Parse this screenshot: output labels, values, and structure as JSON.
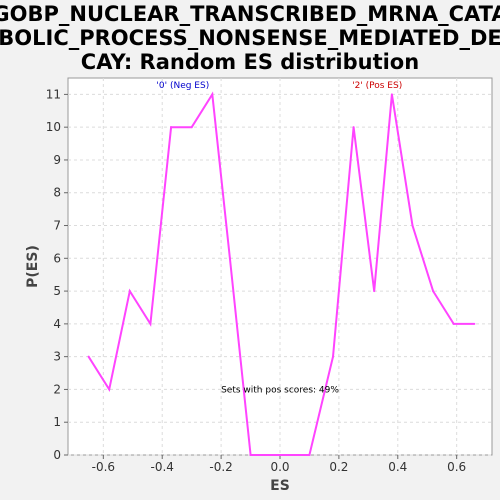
{
  "chart_data": {
    "type": "line",
    "title_lines": [
      "GOBP_NUCLEAR_TRANSCRIBED_MRNA_CATA",
      "BOLIC_PROCESS_NONSENSE_MEDIATED_DE",
      "CAY: Random ES distribution"
    ],
    "xlabel": "ES",
    "ylabel": "P(ES)",
    "xlim": [
      -0.72,
      0.72
    ],
    "ylim": [
      0,
      11.5
    ],
    "xticks": [
      -0.6,
      -0.4,
      -0.2,
      0.0,
      0.2,
      0.4,
      0.6
    ],
    "xtick_labels": [
      "-0.6",
      "-0.4",
      "-0.2",
      "0.0",
      "0.2",
      "0.4",
      "0.6"
    ],
    "yticks": [
      0,
      1,
      2,
      3,
      4,
      5,
      6,
      7,
      8,
      9,
      10,
      11
    ],
    "ytick_labels": [
      "0",
      "1",
      "2",
      "3",
      "4",
      "5",
      "6",
      "7",
      "8",
      "9",
      "10",
      "11"
    ],
    "grid": true,
    "line_color": "#ff44ff",
    "series": [
      {
        "x": [
          -0.65,
          -0.58,
          -0.51,
          -0.44,
          -0.37,
          -0.3,
          -0.23,
          -0.17,
          -0.1,
          -0.03,
          0.03,
          0.1,
          0.18,
          0.25,
          0.32,
          0.38,
          0.45,
          0.52,
          0.59,
          0.66
        ],
        "y": [
          3,
          2,
          5,
          4,
          10,
          10,
          11,
          6,
          0,
          0,
          0,
          0,
          3,
          10,
          5,
          11,
          7,
          5,
          4,
          4
        ]
      }
    ],
    "annotations": [
      {
        "text": "'0' (Neg ES)",
        "x": -0.33,
        "y": 11.2,
        "color": "#0000cc"
      },
      {
        "text": "'2' (Pos ES)",
        "x": 0.33,
        "y": 11.2,
        "color": "#cc0000"
      },
      {
        "text": "Sets with pos scores: 49%",
        "x": 0.0,
        "y": 1.9,
        "color": "#000000"
      }
    ]
  }
}
